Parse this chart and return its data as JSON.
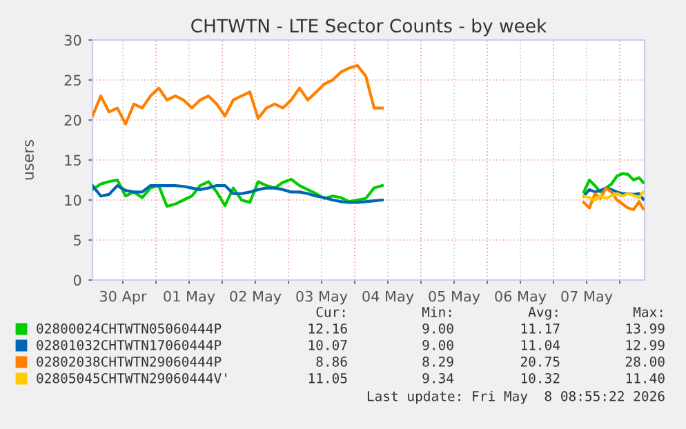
{
  "chart_data": {
    "type": "line",
    "title": "CHTWTN - LTE Sector Counts - by week",
    "ylabel": "users",
    "xlim": [
      "2026-04-30T01:00",
      "2026-05-08T09:00"
    ],
    "xticks": [
      {
        "value": "2026-04-30T12:00",
        "label": "30 Apr"
      },
      {
        "value": "2026-05-01T00:00",
        "label": null
      },
      {
        "value": "2026-05-01T12:00",
        "label": "01 May"
      },
      {
        "value": "2026-05-02T00:00",
        "label": null
      },
      {
        "value": "2026-05-02T12:00",
        "label": "02 May"
      },
      {
        "value": "2026-05-03T00:00",
        "label": null
      },
      {
        "value": "2026-05-03T12:00",
        "label": "03 May"
      },
      {
        "value": "2026-05-04T00:00",
        "label": null
      },
      {
        "value": "2026-05-04T12:00",
        "label": "04 May"
      },
      {
        "value": "2026-05-05T00:00",
        "label": null
      },
      {
        "value": "2026-05-05T12:00",
        "label": "05 May"
      },
      {
        "value": "2026-05-06T00:00",
        "label": null
      },
      {
        "value": "2026-05-06T12:00",
        "label": "06 May"
      },
      {
        "value": "2026-05-07T00:00",
        "label": null
      },
      {
        "value": "2026-05-07T12:00",
        "label": "07 May"
      },
      {
        "value": "2026-05-08T00:00",
        "label": null
      }
    ],
    "ylim": [
      0,
      30
    ],
    "yticks": [
      0,
      5,
      10,
      15,
      20,
      25,
      30
    ],
    "grid": true,
    "legend": "bottom",
    "marker": "none",
    "line_style": "solid",
    "x": [
      "2026-04-30T01:00",
      "2026-04-30T04:00",
      "2026-04-30T07:00",
      "2026-04-30T10:00",
      "2026-04-30T13:00",
      "2026-04-30T16:00",
      "2026-04-30T19:00",
      "2026-04-30T22:00",
      "2026-05-01T01:00",
      "2026-05-01T04:00",
      "2026-05-01T07:00",
      "2026-05-01T10:00",
      "2026-05-01T13:00",
      "2026-05-01T16:00",
      "2026-05-01T19:00",
      "2026-05-01T22:00",
      "2026-05-02T01:00",
      "2026-05-02T04:00",
      "2026-05-02T07:00",
      "2026-05-02T10:00",
      "2026-05-02T13:00",
      "2026-05-02T16:00",
      "2026-05-02T19:00",
      "2026-05-02T22:00",
      "2026-05-03T01:00",
      "2026-05-03T04:00",
      "2026-05-03T07:00",
      "2026-05-03T10:00",
      "2026-05-03T13:00",
      "2026-05-03T16:00",
      "2026-05-03T19:00",
      "2026-05-03T22:00",
      "2026-05-04T01:00",
      "2026-05-04T04:00",
      "2026-05-04T07:00",
      "2026-05-04T10:00",
      "2026-05-05T12:00",
      "2026-05-07T11:00",
      "2026-05-07T13:00",
      "2026-05-07T15:00",
      "2026-05-07T17:00",
      "2026-05-07T19:00",
      "2026-05-07T21:00",
      "2026-05-07T23:00",
      "2026-05-08T01:00",
      "2026-05-08T03:00",
      "2026-05-08T05:00",
      "2026-05-08T07:00",
      "2026-05-08T08:30"
    ],
    "series": [
      {
        "name": "02800024CHTWTN05060444P",
        "color": "#00cc00",
        "values": [
          11.3,
          12,
          12.3,
          12.5,
          10.5,
          11,
          10.3,
          11.5,
          11.8,
          9.2,
          9.5,
          10,
          10.5,
          11.8,
          12.3,
          11,
          9.3,
          11.5,
          10,
          9.7,
          12.3,
          11.8,
          11.5,
          12.2,
          12.6,
          11.8,
          11.3,
          10.8,
          10.2,
          10.5,
          10.3,
          9.8,
          10,
          10.2,
          11.5,
          11.8,
          null,
          11,
          12.5,
          11.8,
          11,
          11.5,
          12,
          13,
          13.3,
          13.2,
          12.5,
          12.8,
          12.2
        ]
      },
      {
        "name": "02801032CHTWTN17060444P",
        "color": "#0066b3",
        "values": [
          11.8,
          10.5,
          10.7,
          11.8,
          11.2,
          11,
          11,
          11.8,
          11.8,
          11.8,
          11.8,
          11.7,
          11.5,
          11.3,
          11.5,
          11.8,
          11.8,
          10.8,
          10.8,
          11,
          11.3,
          11.5,
          11.5,
          11.3,
          11,
          11,
          10.8,
          10.5,
          10.3,
          10,
          9.8,
          9.7,
          9.7,
          9.8,
          9.9,
          10,
          null,
          10.5,
          11.3,
          11,
          11.2,
          11.5,
          11.3,
          11,
          10.8,
          10.8,
          10.7,
          10.8,
          10.1
        ]
      },
      {
        "name": "02802038CHTWTN29060444P",
        "color": "#ff8000",
        "values": [
          20.5,
          23,
          21,
          21.5,
          19.5,
          22,
          21.5,
          23,
          24,
          22.5,
          23,
          22.5,
          21.5,
          22.5,
          23,
          22,
          20.5,
          22.5,
          23,
          23.5,
          20.2,
          21.5,
          22,
          21.5,
          22.5,
          24,
          22.5,
          23.5,
          24.5,
          25,
          26,
          26.5,
          26.8,
          25.5,
          21.5,
          21.5,
          null,
          9.7,
          9,
          10.8,
          10.2,
          11.5,
          11,
          10,
          9.5,
          9,
          8.8,
          9.8,
          8.9
        ]
      },
      {
        "name": "02805045CHTWTN29060444V'",
        "color": "#ffcc00",
        "values": [
          null,
          null,
          null,
          null,
          null,
          null,
          null,
          null,
          null,
          null,
          null,
          null,
          null,
          null,
          null,
          null,
          null,
          null,
          null,
          null,
          null,
          null,
          null,
          null,
          null,
          null,
          null,
          null,
          null,
          null,
          null,
          null,
          null,
          null,
          null,
          null,
          null,
          10.5,
          10.3,
          10,
          10.5,
          10.2,
          10.5,
          10.8,
          10.5,
          10.8,
          10.6,
          10.3,
          11
        ]
      }
    ],
    "annotations": [
      "Cur:",
      "Min:",
      "Avg:",
      "Max:",
      "12.16",
      "9.00",
      "11.17",
      "13.99",
      "10.07",
      "9.00",
      "11.04",
      "12.99",
      "8.86",
      "8.29",
      "20.75",
      "28.00",
      "11.05",
      "9.34",
      "10.32",
      "11.40",
      "Last update: Fri May  8 08:55:22 2026"
    ]
  }
}
